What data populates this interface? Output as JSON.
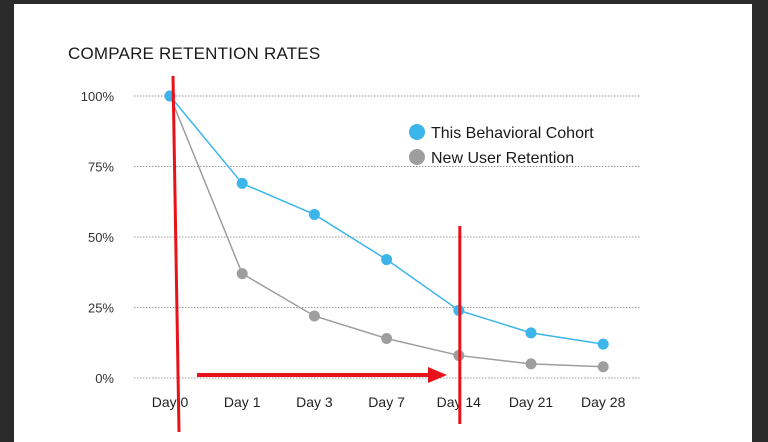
{
  "chart_data": {
    "type": "line",
    "title": "COMPARE RETENTION RATES",
    "categories": [
      "Day 0",
      "Day 1",
      "Day 3",
      "Day 7",
      "Day 14",
      "Day 21",
      "Day 28"
    ],
    "y_ticks": [
      "100%",
      "75%",
      "50%",
      "25%",
      "0%"
    ],
    "ylim": [
      0,
      100
    ],
    "grid": true,
    "legend_position": "top-right",
    "series": [
      {
        "name": "This Behavioral Cohort",
        "color": "#3bb5ea",
        "values": [
          100,
          69,
          58,
          42,
          24,
          16,
          12
        ]
      },
      {
        "name": "New User Retention",
        "color": "#9e9e9e",
        "values": [
          100,
          37,
          22,
          14,
          8,
          5,
          4
        ]
      }
    ],
    "annotations": {
      "color": "#e8121a",
      "vertical_markers_at": [
        "Day 0",
        "Day 14"
      ],
      "arrow": {
        "from": "Day 0",
        "to": "Day 14"
      }
    }
  }
}
